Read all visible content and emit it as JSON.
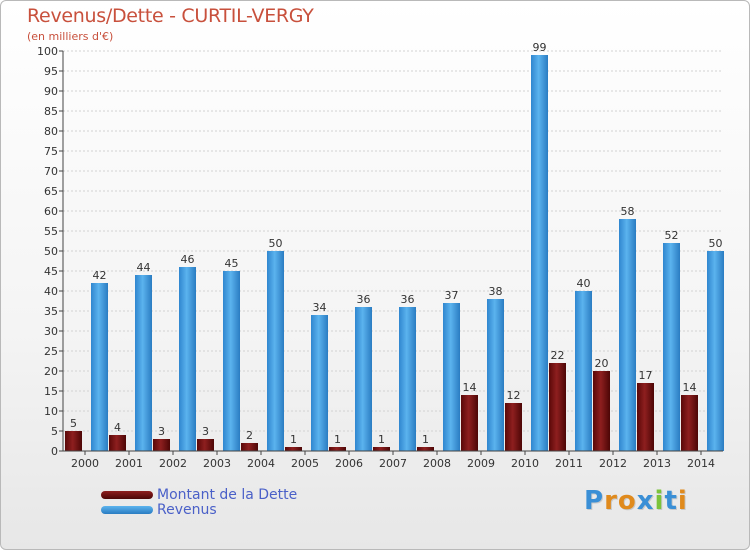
{
  "header": {
    "title": "Revenus/Dette - CURTIL-VERGY",
    "subtitle": "(en milliers d'€)"
  },
  "legend": {
    "items": [
      {
        "label": "Montant de la Dette",
        "color": "#6b0d0d"
      },
      {
        "label": "Revenus",
        "color": "#3d9be0"
      }
    ]
  },
  "logo": {
    "text": "Proxiti",
    "letters": [
      "P",
      "r",
      "o",
      "x",
      "i",
      "t",
      "i"
    ],
    "colors": [
      "#3a8fd6",
      "#e08a1c",
      "#e08a1c",
      "#3a8fd6",
      "#7cc33b",
      "#3a8fd6",
      "#e08a1c"
    ]
  },
  "chart_data": {
    "type": "bar",
    "title": "Revenus/Dette - CURTIL-VERGY",
    "subtitle": "(en milliers d'€)",
    "categories": [
      "2000",
      "2001",
      "2002",
      "2003",
      "2004",
      "2005",
      "2006",
      "2007",
      "2008",
      "2009",
      "2010",
      "2011",
      "2012",
      "2013",
      "2014"
    ],
    "series": [
      {
        "name": "Montant de la Dette",
        "color": "#6b0d0d",
        "values": [
          5,
          4,
          3,
          3,
          2,
          1,
          1,
          1,
          1,
          14,
          12,
          22,
          20,
          17,
          14
        ]
      },
      {
        "name": "Revenus",
        "color": "#3d9be0",
        "values": [
          42,
          44,
          46,
          45,
          50,
          34,
          36,
          36,
          37,
          38,
          99,
          40,
          58,
          52,
          50
        ]
      }
    ],
    "ylim": [
      0,
      100
    ],
    "yticks": [
      0,
      5,
      10,
      15,
      20,
      25,
      30,
      35,
      40,
      45,
      50,
      55,
      60,
      65,
      70,
      75,
      80,
      85,
      90,
      95,
      100
    ],
    "grid": true,
    "legend_position": "bottom-left"
  }
}
